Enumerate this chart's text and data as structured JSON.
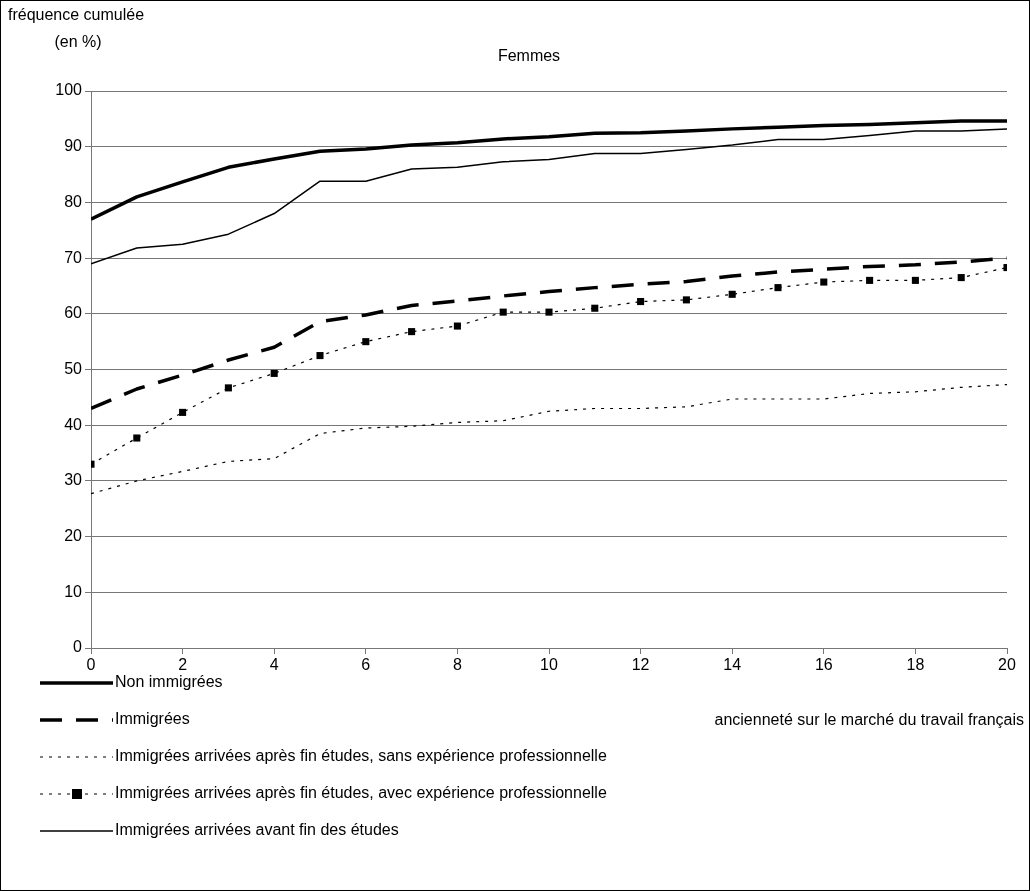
{
  "chart_data": {
    "type": "line",
    "title": "Femmes",
    "ylabel": "fréquence cumulée (en %)",
    "xlabel": "ancienneté sur le marché du travail français",
    "x": [
      0,
      1,
      2,
      3,
      4,
      5,
      6,
      7,
      8,
      9,
      10,
      11,
      12,
      13,
      14,
      15,
      16,
      17,
      18,
      19,
      20
    ],
    "xlim": [
      0,
      20
    ],
    "xticks": [
      0,
      2,
      4,
      6,
      8,
      10,
      12,
      14,
      16,
      18,
      20
    ],
    "ylim": [
      0,
      100
    ],
    "yticks": [
      0,
      10,
      20,
      30,
      40,
      50,
      60,
      70,
      80,
      90,
      100
    ],
    "grid": "y",
    "legend": "bottom left",
    "marker": "none",
    "series": [
      {
        "name": "Non immigrées",
        "color": "#000000",
        "line_style": "solid",
        "values": [
          77,
          81,
          83.7,
          86.3,
          87.8,
          89.2,
          89.6,
          90.3,
          90.7,
          91.4,
          91.8,
          92.4,
          92.5,
          92.8,
          93.2,
          93.5,
          93.8,
          94,
          94.3,
          94.6,
          94.6
        ]
      },
      {
        "name": "Immigrées",
        "color": "#000000",
        "line_style": "dashed",
        "values": [
          43,
          46.5,
          49,
          51.7,
          54,
          58.6,
          59.8,
          61.5,
          62.3,
          63.2,
          64,
          64.7,
          65.3,
          65.8,
          66.8,
          67.5,
          68,
          68.5,
          68.8,
          69.3,
          70
        ]
      },
      {
        "name": "Immigrées arrivées après fin études, sans expérience professionnelle",
        "color": "#000000",
        "line_style": "dotted",
        "values": [
          27.7,
          30,
          31.7,
          33.5,
          34,
          38.5,
          39.5,
          39.8,
          40.5,
          40.8,
          42.5,
          43,
          43,
          43.3,
          44.7,
          44.7,
          44.7,
          45.7,
          46,
          46.8,
          47.3
        ]
      },
      {
        "name": "Immigrées arrivées après fin études, avec expérience professionnelle",
        "color": "#000000",
        "line_style": "dotted",
        "marker": "square",
        "values": [
          33,
          37.7,
          42.3,
          46.7,
          49.3,
          52.5,
          55,
          56.8,
          57.8,
          60.3,
          60.3,
          61,
          62.2,
          62.5,
          63.5,
          64.7,
          65.7,
          66,
          66,
          66.5,
          68.3
        ]
      },
      {
        "name": "Immigrées arrivées avant fin des études",
        "color": "#000000",
        "line_style": "solid",
        "values": [
          69,
          71.8,
          72.5,
          74.3,
          78,
          83.8,
          83.8,
          86,
          86.3,
          87.3,
          87.7,
          88.8,
          88.8,
          89.5,
          90.3,
          91.3,
          91.3,
          92,
          92.8,
          92.8,
          93.2
        ]
      }
    ]
  }
}
